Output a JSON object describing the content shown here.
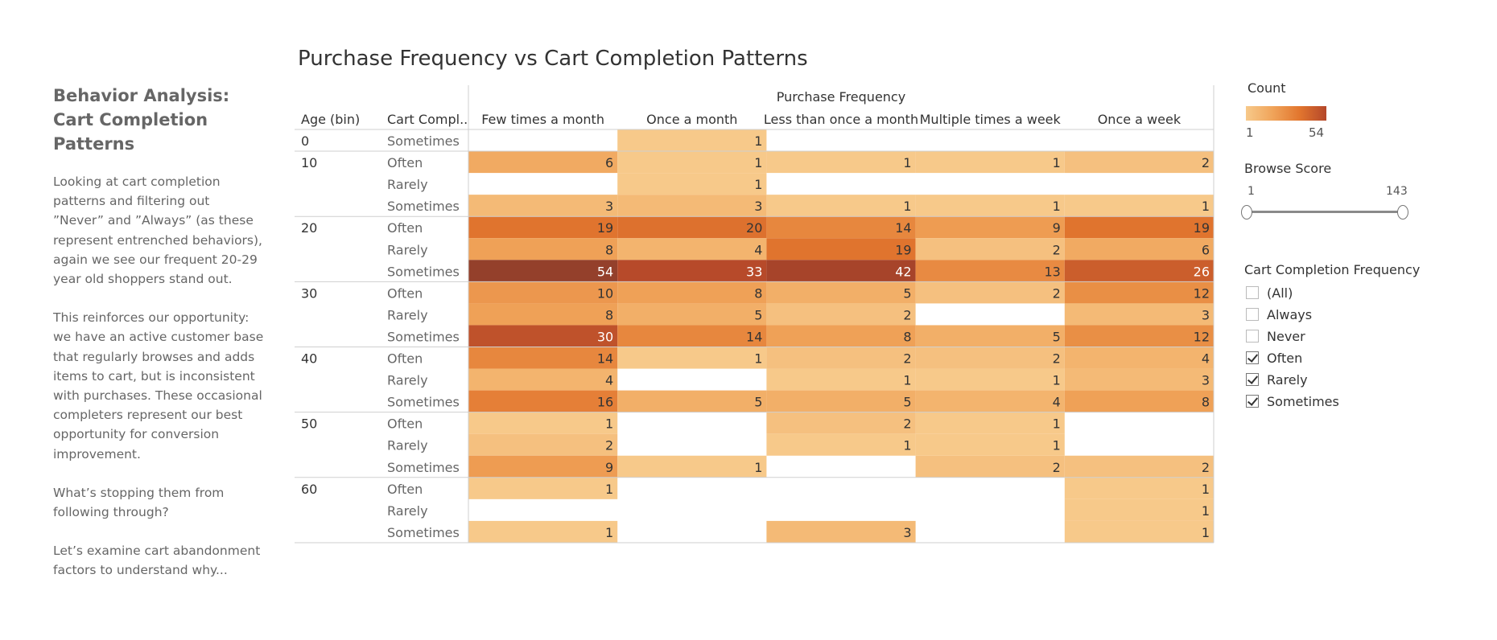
{
  "narrative": {
    "heading": "Behavior Analysis: Cart Completion Patterns",
    "paragraphs": [
      "Looking at cart completion patterns and filtering out ”Never” and ”Always” (as these represent entrenched behaviors), again we see our frequent 20-29 year old shoppers stand out.",
      "This reinforces our opportunity: we have an active customer base that regularly browses and adds items to cart, but is inconsistent with purchases. These occasional completers represent our best opportunity for conversion improvement.",
      "What’s stopping them from following through?",
      "Let’s examine cart abandonment factors to understand why..."
    ]
  },
  "chart_data": {
    "type": "heatmap",
    "title": "Purchase Frequency vs Cart Completion Patterns",
    "column_group_label": "Purchase Frequency",
    "row_headers": [
      "Age (bin)",
      "Cart Compl.."
    ],
    "columns": [
      "Few times a month",
      "Once a month",
      "Less than once a month",
      "Multiple times a week",
      "Once a week"
    ],
    "rows": [
      {
        "age": "0",
        "cart": "Sometimes",
        "values": [
          null,
          1,
          null,
          null,
          null
        ]
      },
      {
        "age": "10",
        "cart": "Often",
        "values": [
          6,
          1,
          1,
          1,
          2
        ]
      },
      {
        "age": "",
        "cart": "Rarely",
        "values": [
          null,
          1,
          null,
          null,
          null
        ]
      },
      {
        "age": "",
        "cart": "Sometimes",
        "values": [
          3,
          3,
          1,
          1,
          1
        ]
      },
      {
        "age": "20",
        "cart": "Often",
        "values": [
          19,
          20,
          14,
          9,
          19
        ]
      },
      {
        "age": "",
        "cart": "Rarely",
        "values": [
          8,
          4,
          19,
          2,
          6
        ]
      },
      {
        "age": "",
        "cart": "Sometimes",
        "values": [
          54,
          33,
          42,
          13,
          26
        ]
      },
      {
        "age": "30",
        "cart": "Often",
        "values": [
          10,
          8,
          5,
          2,
          12
        ]
      },
      {
        "age": "",
        "cart": "Rarely",
        "values": [
          8,
          5,
          2,
          null,
          3
        ]
      },
      {
        "age": "",
        "cart": "Sometimes",
        "values": [
          30,
          14,
          8,
          5,
          12
        ]
      },
      {
        "age": "40",
        "cart": "Often",
        "values": [
          14,
          1,
          2,
          2,
          4
        ]
      },
      {
        "age": "",
        "cart": "Rarely",
        "values": [
          4,
          null,
          1,
          1,
          3
        ]
      },
      {
        "age": "",
        "cart": "Sometimes",
        "values": [
          16,
          5,
          5,
          4,
          8
        ]
      },
      {
        "age": "50",
        "cart": "Often",
        "values": [
          1,
          null,
          2,
          1,
          null
        ]
      },
      {
        "age": "",
        "cart": "Rarely",
        "values": [
          2,
          null,
          1,
          1,
          null
        ]
      },
      {
        "age": "",
        "cart": "Sometimes",
        "values": [
          9,
          1,
          null,
          2,
          2
        ]
      },
      {
        "age": "60",
        "cart": "Often",
        "values": [
          1,
          null,
          null,
          null,
          1
        ]
      },
      {
        "age": "",
        "cart": "Rarely",
        "values": [
          null,
          null,
          null,
          null,
          1
        ]
      },
      {
        "age": "",
        "cart": "Sometimes",
        "values": [
          1,
          null,
          3,
          null,
          1
        ]
      }
    ],
    "color_scale": {
      "min": 1,
      "max": 54,
      "colors": [
        "#f7c98a",
        "#f0a45a",
        "#e2762e",
        "#b4472a",
        "#94402b"
      ]
    }
  },
  "legend": {
    "count": {
      "title": "Count",
      "min_label": "1",
      "max_label": "54"
    },
    "browse_score": {
      "title": "Browse Score",
      "min_label": "1",
      "max_label": "143",
      "min": 1,
      "max": 143,
      "selected_min": 1,
      "selected_max": 143
    },
    "cart_filter": {
      "title": "Cart Completion Frequency",
      "options": [
        {
          "label": "(All)",
          "checked": false
        },
        {
          "label": "Always",
          "checked": false
        },
        {
          "label": "Never",
          "checked": false
        },
        {
          "label": "Often",
          "checked": true
        },
        {
          "label": "Rarely",
          "checked": true
        },
        {
          "label": "Sometimes",
          "checked": true
        }
      ]
    }
  }
}
